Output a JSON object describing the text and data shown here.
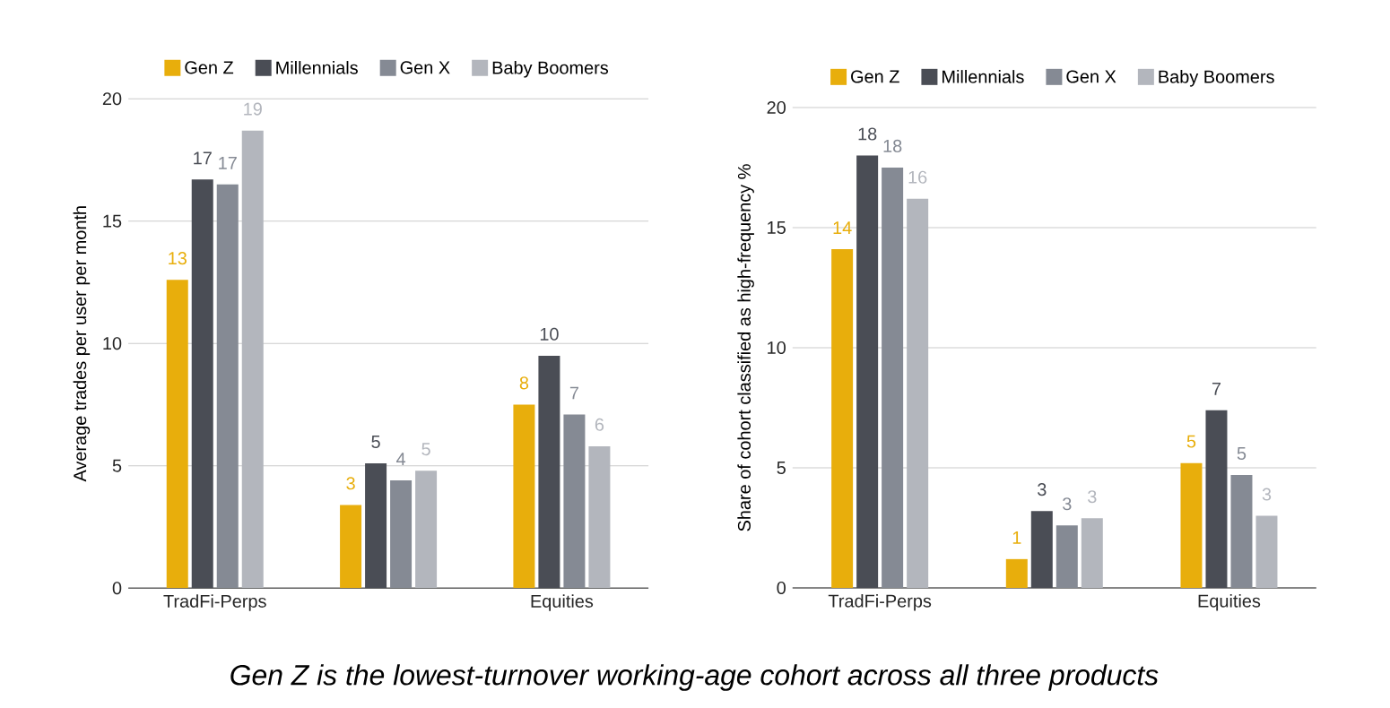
{
  "chart_data": [
    {
      "type": "bar",
      "categories": [
        "TradFi-Perps",
        null,
        "Equities"
      ],
      "ylabel": "Average trades per user per month",
      "ylim": [
        0,
        20
      ],
      "yticks": [
        0,
        5,
        10,
        15,
        20
      ],
      "grid": "y",
      "legend": "top",
      "series": [
        {
          "name": "Gen Z",
          "color": "#e8ae0c",
          "values": [
            12.6,
            3.4,
            7.5
          ],
          "value_labels": [
            "13",
            "3",
            "8"
          ]
        },
        {
          "name": "Millennials",
          "color": "#4a4d55",
          "values": [
            16.7,
            5.1,
            9.5
          ],
          "value_labels": [
            "17",
            "5",
            "10"
          ]
        },
        {
          "name": "Gen X",
          "color": "#858a94",
          "values": [
            16.5,
            4.4,
            7.1
          ],
          "value_labels": [
            "17",
            "4",
            "7"
          ]
        },
        {
          "name": "Baby Boomers",
          "color": "#b3b6bd",
          "values": [
            18.7,
            4.8,
            5.8
          ],
          "value_labels": [
            "19",
            "5",
            "6"
          ]
        }
      ],
      "annotations": [
        "Gen Z is the lowest-turnover working-age cohort across all three products"
      ]
    },
    {
      "type": "bar",
      "categories": [
        "TradFi-Perps",
        null,
        "Equities"
      ],
      "ylabel": "Share of cohort classified as high-frequency %",
      "ylim": [
        0,
        20
      ],
      "yticks": [
        0,
        5,
        10,
        15,
        20
      ],
      "grid": "y",
      "legend": "top",
      "series": [
        {
          "name": "Gen Z",
          "color": "#e8ae0c",
          "values": [
            14.1,
            1.2,
            5.2
          ],
          "value_labels": [
            "14",
            "1",
            "5"
          ]
        },
        {
          "name": "Millennials",
          "color": "#4a4d55",
          "values": [
            18.0,
            3.2,
            7.4
          ],
          "value_labels": [
            "18",
            "3",
            "7"
          ]
        },
        {
          "name": "Gen X",
          "color": "#858a94",
          "values": [
            17.5,
            2.6,
            4.7
          ],
          "value_labels": [
            "18",
            "3",
            "5"
          ]
        },
        {
          "name": "Baby Boomers",
          "color": "#b3b6bd",
          "values": [
            16.2,
            2.9,
            3.0
          ],
          "value_labels": [
            "16",
            "3",
            "3"
          ]
        }
      ]
    }
  ]
}
